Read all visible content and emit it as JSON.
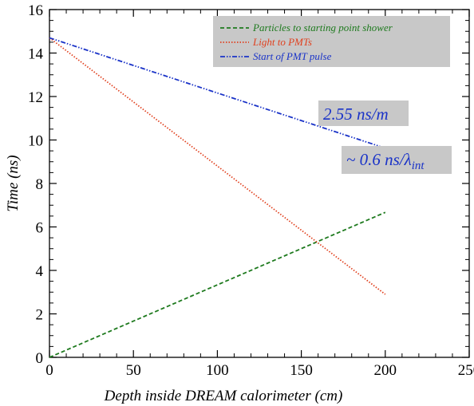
{
  "chart_data": {
    "type": "line",
    "title": "",
    "xlabel": "Depth inside DREAM calorimeter (cm)",
    "ylabel": "Time (ns)",
    "xlim": [
      0,
      250
    ],
    "ylim": [
      0,
      16
    ],
    "xticks": [
      "0",
      "50",
      "100",
      "150",
      "200",
      "250"
    ],
    "yticks": [
      "0",
      "2",
      "4",
      "6",
      "8",
      "10",
      "12",
      "14",
      "16"
    ],
    "grid": false,
    "legend_position": "top-right",
    "series": [
      {
        "name": "Particles to starting point shower",
        "color": "#1e7a1e",
        "dash": "dashed",
        "x": [
          0,
          200
        ],
        "y": [
          0,
          6.67
        ]
      },
      {
        "name": "Light to PMTs",
        "color": "#e0401e",
        "dash": "dotted",
        "x": [
          0,
          200
        ],
        "y": [
          14.7,
          2.9
        ]
      },
      {
        "name": "Start of PMT pulse",
        "color": "#1a33c8",
        "dash": "dash-dot-dot",
        "x": [
          0,
          197
        ],
        "y": [
          14.7,
          9.7
        ]
      }
    ],
    "annotations": [
      {
        "text": "2.55 ns/m"
      },
      {
        "text_prefix": "~ 0.6 ns/λ",
        "text_sub": "int"
      }
    ]
  }
}
